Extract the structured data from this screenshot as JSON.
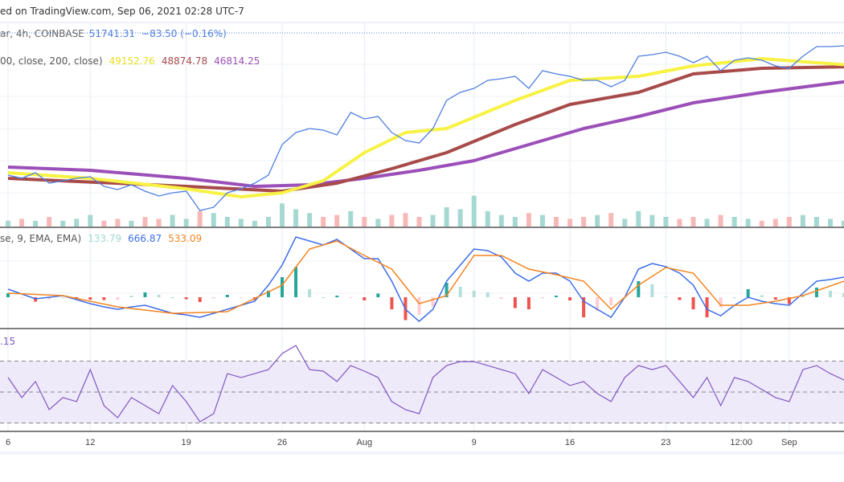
{
  "header": {
    "published": "ed on TradingView.com, Sep 06, 2021 02:28 UTC-7",
    "symbol": "ar, 4h, COINBASE",
    "last_price": "51741.31",
    "change": "−83.50 (−0.16%)",
    "ma_params": "00, close, 200, close)",
    "ma_values": [
      "49152.76",
      "48874.78",
      "46814.25"
    ],
    "macd_params": "se, 9, EMA, EMA)",
    "macd_values": [
      "133.79",
      "666.87",
      "533.09"
    ],
    "rsi_value": ".15"
  },
  "colors": {
    "price": "#4f7fe0",
    "ma_fast": "#f7f244",
    "ma_mid": "#a84a4a",
    "ma_slow": "#9b4fb8",
    "macd": "#3d6de8",
    "signal": "#f5841f",
    "hist_up": "#26a69a",
    "hist_up_light": "#b2dfdb",
    "hist_down": "#ef5350",
    "hist_down_light": "#ffcdd2",
    "rsi": "#7e57c2",
    "rsi_band": "#efeafa",
    "vol_up": "#a6d8d2",
    "vol_down": "#f7b9b7"
  },
  "chart_data": {
    "type": "line",
    "xaxis_ticks": [
      {
        "date": "2021-07-06",
        "label": "6"
      },
      {
        "date": "2021-07-12",
        "label": "12"
      },
      {
        "date": "2021-07-19",
        "label": "19"
      },
      {
        "date": "2021-07-26",
        "label": "26"
      },
      {
        "date": "2021-08-01",
        "label": "Aug"
      },
      {
        "date": "2021-08-09",
        "label": "9"
      },
      {
        "date": "2021-08-16",
        "label": "16"
      },
      {
        "date": "2021-08-23",
        "label": "23"
      },
      {
        "date": "2021-08-28T12:00",
        "label": "12:00"
      },
      {
        "date": "2021-09-01",
        "label": "Sep"
      }
    ],
    "grid": true,
    "price": {
      "x_start": "2021-07-06",
      "x_end": "2021-09-05",
      "close": [
        34030,
        33600,
        34360,
        32930,
        33260,
        33600,
        33810,
        32490,
        32050,
        32710,
        31830,
        31170,
        31610,
        31830,
        29190,
        29630,
        31610,
        32160,
        32930,
        34030,
        38210,
        39860,
        40410,
        40190,
        39530,
        42610,
        41730,
        42060,
        39860,
        38760,
        38430,
        40410,
        44260,
        45360,
        45910,
        47010,
        47230,
        47560,
        45910,
        48330,
        47890,
        47560,
        47010,
        47010,
        46130,
        47010,
        50310,
        50530,
        50860,
        50310,
        49430,
        50310,
        48330,
        49760,
        50090,
        49760,
        48990,
        48660,
        50310,
        51630,
        51630,
        51741
      ],
      "volume_relative": [
        3,
        4,
        3,
        5,
        3,
        4,
        6,
        3,
        4,
        3,
        5,
        4,
        6,
        4,
        8,
        7,
        5,
        4,
        3,
        5,
        12,
        9,
        7,
        5,
        6,
        8,
        5,
        4,
        6,
        7,
        5,
        6,
        10,
        9,
        16,
        8,
        6,
        5,
        7,
        6,
        5,
        4,
        5,
        6,
        7,
        4,
        8,
        6,
        5,
        4,
        5,
        4,
        6,
        5,
        4,
        3,
        4,
        5,
        6,
        5,
        4,
        3
      ]
    },
    "moving_averages": [
      {
        "points": [
          [
            "2021-07-06",
            34361
          ],
          [
            "2021-07-12",
            33591
          ],
          [
            "2021-07-19",
            32161
          ],
          [
            "2021-07-23",
            31061
          ],
          [
            "2021-07-26",
            31611
          ],
          [
            "2021-07-29",
            33261
          ],
          [
            "2021-08-01",
            37111
          ],
          [
            "2021-08-04",
            39861
          ],
          [
            "2021-08-07",
            40411
          ],
          [
            "2021-08-12",
            44261
          ],
          [
            "2021-08-16",
            47011
          ],
          [
            "2021-08-21",
            47561
          ],
          [
            "2021-08-25",
            48991
          ],
          [
            "2021-08-30",
            49981
          ],
          [
            "2021-09-05",
            49153
          ]
        ]
      },
      {
        "points": [
          [
            "2021-07-06",
            33591
          ],
          [
            "2021-07-19",
            32491
          ],
          [
            "2021-07-26",
            31831
          ],
          [
            "2021-07-30",
            32931
          ],
          [
            "2021-08-03",
            34911
          ],
          [
            "2021-08-07",
            37111
          ],
          [
            "2021-08-12",
            40961
          ],
          [
            "2021-08-16",
            43711
          ],
          [
            "2021-08-21",
            45361
          ],
          [
            "2021-08-25",
            47891
          ],
          [
            "2021-08-30",
            48661
          ],
          [
            "2021-09-05",
            48875
          ]
        ]
      },
      {
        "points": [
          [
            "2021-07-06",
            35131
          ],
          [
            "2021-07-12",
            34691
          ],
          [
            "2021-07-19",
            33591
          ],
          [
            "2021-07-24",
            32491
          ],
          [
            "2021-07-28",
            32711
          ],
          [
            "2021-08-01",
            33591
          ],
          [
            "2021-08-05",
            34691
          ],
          [
            "2021-08-09",
            36011
          ],
          [
            "2021-08-13",
            38211
          ],
          [
            "2021-08-17",
            40411
          ],
          [
            "2021-08-21",
            42061
          ],
          [
            "2021-08-25",
            43931
          ],
          [
            "2021-08-30",
            45361
          ],
          [
            "2021-09-05",
            46814
          ]
        ]
      }
    ],
    "macd": {
      "macd": [
        267,
        107,
        -53,
        0,
        53,
        -80,
        -214,
        -320,
        -400,
        -320,
        -267,
        -400,
        -534,
        -587,
        -668,
        -534,
        -400,
        -267,
        -134,
        400,
        1068,
        2003,
        1869,
        1736,
        1922,
        1602,
        1282,
        1282,
        534,
        -400,
        -801,
        -400,
        534,
        1068,
        1602,
        1549,
        1335,
        801,
        534,
        801,
        801,
        534,
        -134,
        -400,
        -668,
        0,
        935,
        1121,
        1015,
        801,
        400,
        -400,
        -614,
        -267,
        0,
        -134,
        -214,
        -267,
        134,
        534,
        587,
        667
      ],
      "signal_points": [
        [
          "2021-07-06",
          134
        ],
        [
          "2021-07-10",
          53
        ],
        [
          "2021-07-14",
          -320
        ],
        [
          "2021-07-18",
          -534
        ],
        [
          "2021-07-22",
          -481
        ],
        [
          "2021-07-26",
          400
        ],
        [
          "2021-07-28",
          1602
        ],
        [
          "2021-07-30",
          1869
        ],
        [
          "2021-08-01",
          1388
        ],
        [
          "2021-08-03",
          935
        ],
        [
          "2021-08-05",
          -214
        ],
        [
          "2021-08-07",
          53
        ],
        [
          "2021-08-09",
          1388
        ],
        [
          "2021-08-11",
          1388
        ],
        [
          "2021-08-13",
          935
        ],
        [
          "2021-08-15",
          748
        ],
        [
          "2021-08-17",
          534
        ],
        [
          "2021-08-19",
          -400
        ],
        [
          "2021-08-21",
          400
        ],
        [
          "2021-08-23",
          988
        ],
        [
          "2021-08-25",
          801
        ],
        [
          "2021-08-27",
          -267
        ],
        [
          "2021-08-29",
          -267
        ],
        [
          "2021-08-31",
          -134
        ],
        [
          "2021-09-02",
          53
        ],
        [
          "2021-09-05",
          533
        ]
      ]
    },
    "rsi": {
      "values": [
        59.4,
        46.4,
        56.8,
        38.6,
        46.4,
        43.8,
        64.5,
        41.2,
        33.4,
        46.4,
        41.2,
        36.0,
        54.2,
        43.8,
        30.8,
        36.0,
        61.9,
        59.4,
        61.9,
        64.5,
        74.9,
        80.1,
        64.5,
        63.5,
        56.8,
        67.1,
        63.5,
        59.4,
        43.8,
        38.6,
        36.0,
        59.4,
        67.1,
        69.7,
        69.7,
        67.1,
        64.5,
        61.9,
        49.0,
        64.5,
        59.4,
        54.2,
        56.8,
        49.0,
        43.8,
        59.4,
        67.1,
        64.5,
        67.1,
        56.8,
        46.4,
        59.4,
        41.2,
        59.4,
        56.8,
        51.6,
        46.4,
        43.8,
        64.5,
        67.1,
        61.9,
        57.8
      ],
      "levels": [
        70,
        50,
        30
      ]
    }
  }
}
